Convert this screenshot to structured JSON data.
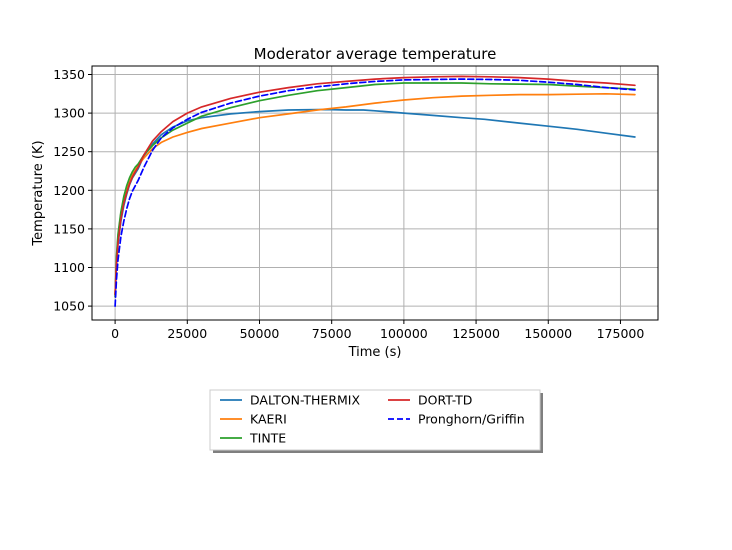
{
  "chart_data": {
    "type": "line",
    "title": "Moderator average temperature",
    "xlabel": "Time (s)",
    "ylabel": "Temperature (K)",
    "xlim": [
      -8000,
      188000
    ],
    "ylim": [
      1032,
      1361
    ],
    "xticks": [
      0,
      25000,
      50000,
      75000,
      100000,
      125000,
      150000,
      175000
    ],
    "yticks": [
      1050,
      1100,
      1150,
      1200,
      1250,
      1300,
      1350
    ],
    "grid": true,
    "legend_position": "below plot, centered",
    "series": [
      {
        "name": "DALTON-THERMIX",
        "color": "#1f77b4",
        "dash": "solid",
        "x": [
          0,
          500,
          1000,
          2000,
          3000,
          4000,
          5000,
          6000,
          7000,
          8000,
          10000,
          13000,
          16000,
          20000,
          25000,
          30000,
          40000,
          50000,
          60000,
          70000,
          75000,
          80000,
          86000,
          90000,
          100000,
          110000,
          120000,
          128000,
          140000,
          150000,
          160000,
          170000,
          180000
        ],
        "y": [
          1065,
          1105,
          1130,
          1160,
          1180,
          1195,
          1207,
          1216,
          1222,
          1228,
          1245,
          1260,
          1272,
          1282,
          1290,
          1294,
          1299,
          1302,
          1304,
          1304.5,
          1304.5,
          1304,
          1304,
          1303,
          1300,
          1297,
          1294,
          1292,
          1287,
          1283,
          1279,
          1274,
          1269
        ]
      },
      {
        "name": "KAERI",
        "color": "#ff7f0e",
        "dash": "solid",
        "x": [
          0,
          500,
          1000,
          2000,
          3000,
          4000,
          5000,
          6000,
          7000,
          8000,
          10000,
          13000,
          16000,
          20000,
          25000,
          30000,
          40000,
          50000,
          60000,
          70000,
          80000,
          90000,
          100000,
          110000,
          120000,
          130000,
          140000,
          150000,
          160000,
          170000,
          180000
        ],
        "y": [
          1065,
          1110,
          1140,
          1170,
          1190,
          1203,
          1212,
          1220,
          1226,
          1232,
          1242,
          1254,
          1262,
          1269,
          1275,
          1280,
          1287,
          1294,
          1299,
          1304,
          1308,
          1313,
          1317,
          1320,
          1322,
          1323,
          1324,
          1324,
          1324.5,
          1325,
          1324
        ]
      },
      {
        "name": "TINTE",
        "color": "#2ca02c",
        "dash": "solid",
        "x": [
          0,
          500,
          1000,
          2000,
          3000,
          4000,
          5000,
          6000,
          7000,
          8000,
          10000,
          13000,
          16000,
          20000,
          25000,
          30000,
          40000,
          50000,
          60000,
          70000,
          80000,
          90000,
          100000,
          110000,
          120000,
          130000,
          140000,
          150000,
          160000,
          170000,
          180000
        ],
        "y": [
          1062,
          1115,
          1143,
          1172,
          1192,
          1206,
          1216,
          1224,
          1230,
          1234,
          1246,
          1258,
          1268,
          1278,
          1287,
          1296,
          1307,
          1316,
          1323,
          1329,
          1333,
          1337,
          1339,
          1339,
          1339,
          1338,
          1337.5,
          1337,
          1335,
          1333,
          1331
        ]
      },
      {
        "name": "DORT-TD",
        "color": "#d62728",
        "dash": "solid",
        "x": [
          0,
          500,
          1000,
          2000,
          3000,
          4000,
          5000,
          6000,
          7000,
          8000,
          10000,
          13000,
          16000,
          20000,
          25000,
          30000,
          40000,
          50000,
          60000,
          70000,
          80000,
          90000,
          100000,
          110000,
          120000,
          130000,
          140000,
          150000,
          160000,
          170000,
          180000
        ],
        "y": [
          1065,
          1105,
          1132,
          1163,
          1183,
          1197,
          1208,
          1217,
          1224,
          1230,
          1246,
          1264,
          1276,
          1289,
          1300,
          1308,
          1319,
          1327,
          1333,
          1338,
          1341,
          1344,
          1346,
          1347,
          1347.5,
          1347,
          1346,
          1344,
          1341,
          1339,
          1336
        ]
      },
      {
        "name": "Pronghorn/Griffin",
        "color": "#0000ff",
        "dash": "dashed",
        "x": [
          0,
          500,
          1000,
          2000,
          3000,
          4000,
          5000,
          6000,
          7000,
          8000,
          10000,
          13000,
          16000,
          20000,
          25000,
          30000,
          40000,
          50000,
          60000,
          70000,
          80000,
          90000,
          100000,
          110000,
          120000,
          130000,
          140000,
          150000,
          160000,
          170000,
          180000
        ],
        "y": [
          1050,
          1085,
          1110,
          1140,
          1160,
          1176,
          1189,
          1199,
          1206,
          1213,
          1230,
          1252,
          1268,
          1281,
          1292,
          1301,
          1313,
          1322,
          1329,
          1334,
          1338,
          1341,
          1343,
          1343.5,
          1344,
          1343.5,
          1342.5,
          1340,
          1337,
          1333,
          1330
        ]
      }
    ]
  }
}
